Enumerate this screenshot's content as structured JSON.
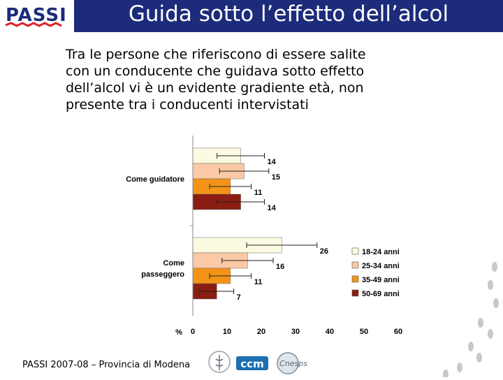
{
  "header": {
    "logo_text": "PASSI",
    "title": "Guida sotto l’effetto dell’alcol"
  },
  "intro_lines": [
    "Tra le persone che riferiscono di essere salite",
    "con un conducente che guidava sotto effetto",
    "dell’alcol vi è un evidente gradiente età, non",
    "presente tra i conducenti intervistati"
  ],
  "chart_data": {
    "type": "bar",
    "orientation": "horizontal",
    "categories": [
      "Come guidatore",
      "Come passeggero"
    ],
    "category_label_lines": [
      [
        "Come guidatore"
      ],
      [
        "Come",
        "passeggero"
      ]
    ],
    "series": [
      {
        "name": "18-24 anni",
        "color": "#fcfae0",
        "values": [
          14,
          26
        ]
      },
      {
        "name": "25-34 anni",
        "color": "#fbc9a6",
        "values": [
          15,
          16
        ]
      },
      {
        "name": "35-49 anni",
        "color": "#f39418",
        "values": [
          11,
          11
        ]
      },
      {
        "name": "50-69 anni",
        "color": "#8b1d12",
        "values": [
          14,
          7
        ]
      }
    ],
    "data_labels": [
      [
        "14",
        "15",
        "11",
        "14"
      ],
      [
        "26",
        "16",
        "11",
        "7"
      ]
    ],
    "error_bars": true,
    "xlabel": "%",
    "xlim": [
      0,
      60
    ],
    "xticks": [
      "0",
      "10",
      "20",
      "30",
      "40",
      "50",
      "60"
    ],
    "grid": false,
    "legend_position": "right"
  },
  "footer": {
    "text": "PASSI 2007-08 – Provincia di Modena",
    "logos": [
      "ISS",
      "ccm",
      "Cnesps"
    ]
  }
}
